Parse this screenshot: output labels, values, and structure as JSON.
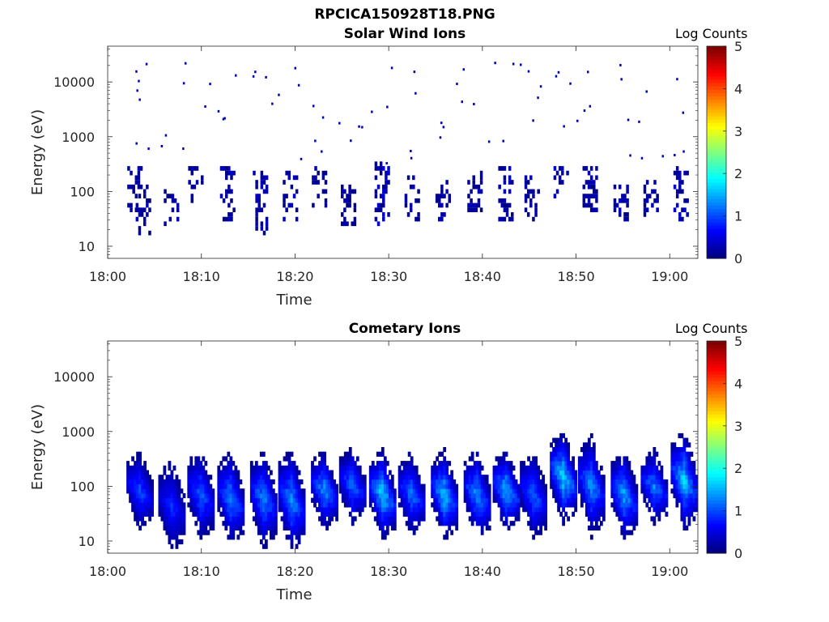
{
  "figure": {
    "filename_title": "RPCICA150928T18.PNG"
  },
  "colormap": "jet",
  "chart_data": [
    {
      "type": "heatmap",
      "title": "Solar Wind Ions",
      "xlabel": "Time",
      "ylabel": "Energy (eV)",
      "x_ticks": [
        "18:00",
        "18:10",
        "18:20",
        "18:30",
        "18:40",
        "18:50",
        "19:00"
      ],
      "y_ticks": [
        "10",
        "100",
        "1000",
        "10000"
      ],
      "y_scale": "log",
      "ylim": [
        6,
        45000
      ],
      "xlim_minutes": [
        0,
        63
      ],
      "colorbar": {
        "label": "Log Counts",
        "range": [
          0,
          5
        ],
        "ticks": [
          "0",
          "1",
          "2",
          "3",
          "4",
          "5"
        ]
      },
      "bursts": [
        {
          "t": 2.9,
          "lo": 40,
          "hi": 250,
          "level": 0.3
        },
        {
          "t": 3.8,
          "lo": 15,
          "hi": 120,
          "level": 0.3
        },
        {
          "t": 6.8,
          "lo": 20,
          "hi": 110,
          "level": 0.25
        },
        {
          "t": 9.4,
          "lo": 60,
          "hi": 250,
          "level": 0.3
        },
        {
          "t": 12.8,
          "lo": 25,
          "hi": 250,
          "level": 0.4
        },
        {
          "t": 16.3,
          "lo": 15,
          "hi": 200,
          "level": 0.35
        },
        {
          "t": 19.5,
          "lo": 20,
          "hi": 200,
          "level": 0.35
        },
        {
          "t": 22.6,
          "lo": 50,
          "hi": 250,
          "level": 0.3
        },
        {
          "t": 25.7,
          "lo": 20,
          "hi": 120,
          "level": 0.25
        },
        {
          "t": 29.3,
          "lo": 20,
          "hi": 300,
          "level": 0.45
        },
        {
          "t": 32.5,
          "lo": 25,
          "hi": 200,
          "level": 0.3
        },
        {
          "t": 35.8,
          "lo": 25,
          "hi": 150,
          "level": 0.35
        },
        {
          "t": 39.2,
          "lo": 40,
          "hi": 220,
          "level": 0.3
        },
        {
          "t": 42.5,
          "lo": 25,
          "hi": 250,
          "level": 0.35
        },
        {
          "t": 45.3,
          "lo": 25,
          "hi": 180,
          "level": 0.25
        },
        {
          "t": 48.4,
          "lo": 60,
          "hi": 250,
          "level": 0.45
        },
        {
          "t": 51.5,
          "lo": 40,
          "hi": 250,
          "level": 0.3
        },
        {
          "t": 54.8,
          "lo": 25,
          "hi": 150,
          "level": 0.35
        },
        {
          "t": 58.0,
          "lo": 30,
          "hi": 150,
          "level": 0.3
        },
        {
          "t": 61.2,
          "lo": 25,
          "hi": 300,
          "level": 0.45
        }
      ]
    },
    {
      "type": "heatmap",
      "title": "Cometary Ions",
      "xlabel": "Time",
      "ylabel": "Energy (eV)",
      "x_ticks": [
        "18:00",
        "18:10",
        "18:20",
        "18:30",
        "18:40",
        "18:50",
        "19:00"
      ],
      "y_ticks": [
        "10",
        "100",
        "1000",
        "10000"
      ],
      "y_scale": "log",
      "ylim": [
        6,
        45000
      ],
      "xlim_minutes": [
        0,
        63
      ],
      "colorbar": {
        "label": "Log Counts",
        "range": [
          0,
          5
        ],
        "ticks": [
          "0",
          "1",
          "2",
          "3",
          "4",
          "5"
        ]
      },
      "bursts": [
        {
          "t": 3.3,
          "lo": 15,
          "hi": 380,
          "peak": 1.2
        },
        {
          "t": 6.7,
          "lo": 6,
          "hi": 250,
          "peak": 1.0
        },
        {
          "t": 9.8,
          "lo": 10,
          "hi": 420,
          "peak": 1.3
        },
        {
          "t": 13.0,
          "lo": 8,
          "hi": 380,
          "peak": 1.5
        },
        {
          "t": 16.5,
          "lo": 7,
          "hi": 400,
          "peak": 1.5
        },
        {
          "t": 19.5,
          "lo": 6,
          "hi": 420,
          "peak": 1.6
        },
        {
          "t": 23.0,
          "lo": 15,
          "hi": 400,
          "peak": 1.6
        },
        {
          "t": 26.0,
          "lo": 20,
          "hi": 450,
          "peak": 1.4
        },
        {
          "t": 29.2,
          "lo": 10,
          "hi": 420,
          "peak": 1.9
        },
        {
          "t": 32.3,
          "lo": 12,
          "hi": 350,
          "peak": 1.4
        },
        {
          "t": 35.8,
          "lo": 10,
          "hi": 400,
          "peak": 1.9
        },
        {
          "t": 39.3,
          "lo": 10,
          "hi": 400,
          "peak": 1.6
        },
        {
          "t": 42.4,
          "lo": 15,
          "hi": 400,
          "peak": 1.8
        },
        {
          "t": 45.3,
          "lo": 10,
          "hi": 400,
          "peak": 1.4
        },
        {
          "t": 48.5,
          "lo": 20,
          "hi": 900,
          "peak": 2.0
        },
        {
          "t": 51.5,
          "lo": 12,
          "hi": 700,
          "peak": 1.6
        },
        {
          "t": 55.0,
          "lo": 10,
          "hi": 400,
          "peak": 1.7
        },
        {
          "t": 58.2,
          "lo": 20,
          "hi": 400,
          "peak": 1.5
        },
        {
          "t": 61.4,
          "lo": 15,
          "hi": 900,
          "peak": 1.9
        }
      ]
    }
  ]
}
